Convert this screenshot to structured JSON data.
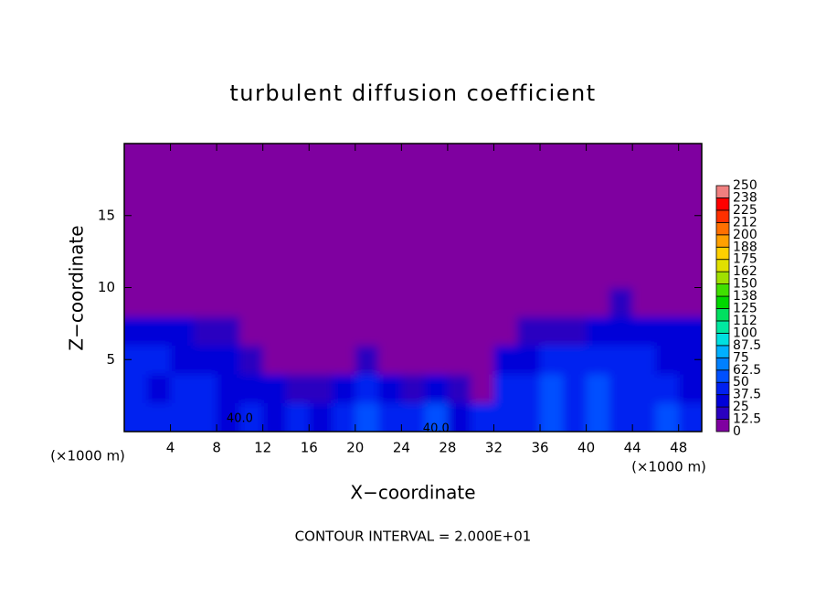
{
  "chart_data": {
    "type": "contour",
    "title": "turbulent diffusion coefficient",
    "x_label": "X−coordinate",
    "y_label": "Z−coordinate",
    "y_unit_label": "(×1000 m)",
    "x_unit_label": "(×1000 m)",
    "footnote": "CONTOUR INTERVAL = 2.000E+01",
    "xlim": [
      0,
      50
    ],
    "ylim": [
      0,
      20
    ],
    "xticks": [
      4,
      8,
      12,
      16,
      20,
      24,
      28,
      32,
      36,
      40,
      44,
      48
    ],
    "yticks": [
      5,
      10,
      15
    ],
    "x": [
      1,
      3,
      5,
      7,
      9,
      11,
      13,
      15,
      17,
      19,
      21,
      23,
      25,
      27,
      29,
      31,
      33,
      35,
      37,
      39,
      41,
      43,
      45,
      47,
      49
    ],
    "y": [
      1,
      3,
      5,
      7,
      9,
      11,
      13,
      15,
      17,
      19
    ],
    "z": [
      [
        45,
        40,
        38,
        42,
        35,
        40,
        30,
        45,
        35,
        40,
        55,
        45,
        40,
        50,
        35,
        45,
        40,
        45,
        50,
        40,
        55,
        45,
        40,
        50,
        45
      ],
      [
        40,
        35,
        45,
        40,
        35,
        30,
        25,
        20,
        15,
        30,
        40,
        35,
        20,
        25,
        15,
        10,
        40,
        45,
        55,
        45,
        50,
        40,
        45,
        40,
        35
      ],
      [
        40,
        45,
        35,
        30,
        25,
        20,
        10,
        5,
        5,
        10,
        15,
        10,
        5,
        5,
        5,
        10,
        30,
        35,
        40,
        45,
        40,
        45,
        40,
        35,
        35
      ],
      [
        30,
        30,
        25,
        20,
        15,
        10,
        10,
        5,
        5,
        5,
        5,
        5,
        5,
        5,
        5,
        5,
        10,
        15,
        20,
        20,
        25,
        30,
        35,
        30,
        30
      ],
      [
        0,
        0,
        0,
        0,
        0,
        0,
        0,
        0,
        0,
        0,
        0,
        0,
        0,
        0,
        0,
        0,
        0,
        0,
        0,
        0,
        0,
        15,
        0,
        0,
        0
      ],
      [
        0,
        0,
        0,
        0,
        0,
        0,
        0,
        0,
        0,
        0,
        0,
        0,
        0,
        0,
        0,
        0,
        0,
        0,
        0,
        0,
        0,
        0,
        0,
        0,
        0
      ],
      [
        0,
        0,
        0,
        0,
        0,
        0,
        0,
        0,
        0,
        0,
        0,
        0,
        0,
        0,
        0,
        0,
        0,
        0,
        0,
        0,
        0,
        0,
        0,
        0,
        0
      ],
      [
        0,
        0,
        0,
        0,
        0,
        0,
        0,
        0,
        0,
        0,
        0,
        0,
        0,
        0,
        0,
        0,
        0,
        0,
        0,
        0,
        0,
        0,
        0,
        0,
        0
      ],
      [
        0,
        0,
        0,
        0,
        0,
        0,
        0,
        0,
        0,
        0,
        0,
        0,
        0,
        0,
        0,
        0,
        0,
        0,
        0,
        0,
        0,
        0,
        0,
        0,
        0
      ],
      [
        0,
        0,
        0,
        0,
        0,
        0,
        0,
        0,
        0,
        0,
        0,
        0,
        0,
        0,
        0,
        0,
        0,
        0,
        0,
        0,
        0,
        0,
        0,
        0,
        0
      ]
    ],
    "colorbar_ticks": [
      0,
      12.5,
      25,
      37.5,
      50,
      62.5,
      75,
      87.5,
      100,
      {
        "value": 112.5,
        "label": "112"
      },
      125,
      {
        "value": 137.5,
        "label": "138"
      },
      150,
      {
        "value": 162.5,
        "label": "162"
      },
      175,
      {
        "value": 187.5,
        "label": "188"
      },
      200,
      {
        "value": 212.5,
        "label": "212"
      },
      225,
      {
        "value": 237.5,
        "label": "238"
      },
      250
    ],
    "colors": [
      "#7f00a0",
      "#2a00c0",
      "#0000d8",
      "#0020f0",
      "#0050ff",
      "#0080ff",
      "#00b0ff",
      "#00e0e0",
      "#00e8a0",
      "#00e060",
      "#00d800",
      "#40e000",
      "#a0e000",
      "#e0e000",
      "#ffd000",
      "#ffa000",
      "#ff7000",
      "#ff3000",
      "#ff0000",
      "#f08080"
    ],
    "annotations": [
      {
        "text": "40.0",
        "x": 10,
        "y": 0.9
      },
      {
        "text": "40.0",
        "x": 27,
        "y": 0.2
      }
    ]
  }
}
